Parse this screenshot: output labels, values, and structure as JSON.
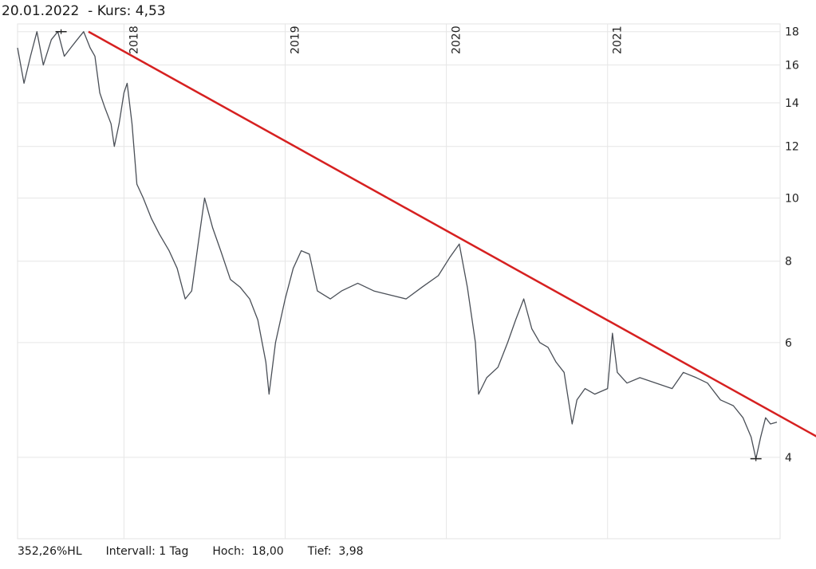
{
  "header": {
    "date": "20.01.2022",
    "kurs_label": "- Kurs:",
    "kurs_value": "4,53"
  },
  "footer": {
    "hl": "352,26%HL",
    "interval": "Intervall: 1 Tag",
    "hoch": "Hoch:  18,00",
    "tief": "Tief:  3,98"
  },
  "chart_data": {
    "type": "line",
    "scale": "log",
    "ylim": [
      3.0,
      18.5
    ],
    "xlim": [
      2017.34,
      2022.07
    ],
    "y_ticks": [
      4,
      6,
      8,
      10,
      12,
      14,
      16,
      18
    ],
    "x_ticks": [
      {
        "label": "2018",
        "x": 2018.0
      },
      {
        "label": "2019",
        "x": 2019.0
      },
      {
        "label": "2020",
        "x": 2020.0
      },
      {
        "label": "2021",
        "x": 2021.0
      }
    ],
    "grid": true,
    "series": [
      {
        "color": "#4a4f57",
        "points": [
          [
            2017.34,
            17.0
          ],
          [
            2017.38,
            15.0
          ],
          [
            2017.42,
            16.5
          ],
          [
            2017.46,
            18.0
          ],
          [
            2017.5,
            16.0
          ],
          [
            2017.55,
            17.5
          ],
          [
            2017.59,
            18.0
          ],
          [
            2017.63,
            16.5
          ],
          [
            2017.67,
            17.0
          ],
          [
            2017.71,
            17.5
          ],
          [
            2017.75,
            18.0
          ],
          [
            2017.79,
            17.0
          ],
          [
            2017.82,
            16.5
          ],
          [
            2017.85,
            14.5
          ],
          [
            2017.88,
            13.8
          ],
          [
            2017.92,
            13.0
          ],
          [
            2017.94,
            12.0
          ],
          [
            2017.97,
            13.0
          ],
          [
            2018.0,
            14.5
          ],
          [
            2018.02,
            15.0
          ],
          [
            2018.05,
            13.0
          ],
          [
            2018.08,
            10.5
          ],
          [
            2018.12,
            10.0
          ],
          [
            2018.17,
            9.3
          ],
          [
            2018.22,
            8.8
          ],
          [
            2018.28,
            8.3
          ],
          [
            2018.33,
            7.8
          ],
          [
            2018.38,
            7.0
          ],
          [
            2018.42,
            7.2
          ],
          [
            2018.46,
            8.5
          ],
          [
            2018.5,
            10.0
          ],
          [
            2018.55,
            9.0
          ],
          [
            2018.6,
            8.3
          ],
          [
            2018.66,
            7.5
          ],
          [
            2018.72,
            7.3
          ],
          [
            2018.78,
            7.0
          ],
          [
            2018.83,
            6.5
          ],
          [
            2018.88,
            5.6
          ],
          [
            2018.9,
            5.0
          ],
          [
            2018.94,
            6.0
          ],
          [
            2019.0,
            7.0
          ],
          [
            2019.05,
            7.8
          ],
          [
            2019.1,
            8.3
          ],
          [
            2019.15,
            8.2
          ],
          [
            2019.2,
            7.2
          ],
          [
            2019.28,
            7.0
          ],
          [
            2019.35,
            7.2
          ],
          [
            2019.45,
            7.4
          ],
          [
            2019.55,
            7.2
          ],
          [
            2019.65,
            7.1
          ],
          [
            2019.75,
            7.0
          ],
          [
            2019.85,
            7.3
          ],
          [
            2019.95,
            7.6
          ],
          [
            2020.02,
            8.1
          ],
          [
            2020.08,
            8.5
          ],
          [
            2020.13,
            7.3
          ],
          [
            2020.18,
            6.0
          ],
          [
            2020.2,
            5.0
          ],
          [
            2020.25,
            5.3
          ],
          [
            2020.32,
            5.5
          ],
          [
            2020.38,
            6.0
          ],
          [
            2020.43,
            6.5
          ],
          [
            2020.48,
            7.0
          ],
          [
            2020.53,
            6.3
          ],
          [
            2020.58,
            6.0
          ],
          [
            2020.63,
            5.9
          ],
          [
            2020.68,
            5.6
          ],
          [
            2020.73,
            5.4
          ],
          [
            2020.78,
            4.5
          ],
          [
            2020.81,
            4.9
          ],
          [
            2020.86,
            5.1
          ],
          [
            2020.92,
            5.0
          ],
          [
            2021.0,
            5.1
          ],
          [
            2021.03,
            6.2
          ],
          [
            2021.06,
            5.4
          ],
          [
            2021.12,
            5.2
          ],
          [
            2021.2,
            5.3
          ],
          [
            2021.3,
            5.2
          ],
          [
            2021.4,
            5.1
          ],
          [
            2021.47,
            5.4
          ],
          [
            2021.55,
            5.3
          ],
          [
            2021.62,
            5.2
          ],
          [
            2021.7,
            4.9
          ],
          [
            2021.78,
            4.8
          ],
          [
            2021.84,
            4.6
          ],
          [
            2021.89,
            4.3
          ],
          [
            2021.92,
            3.98
          ],
          [
            2021.95,
            4.3
          ],
          [
            2021.98,
            4.6
          ],
          [
            2022.01,
            4.5
          ],
          [
            2022.05,
            4.53
          ]
        ]
      }
    ],
    "trendline": {
      "color": "#d62020",
      "from": [
        2017.78,
        18.0
      ],
      "to": [
        2022.3,
        4.3
      ]
    },
    "markers": [
      {
        "x": 2017.61,
        "y": 18.0
      },
      {
        "x": 2021.92,
        "y": 3.98
      }
    ]
  }
}
